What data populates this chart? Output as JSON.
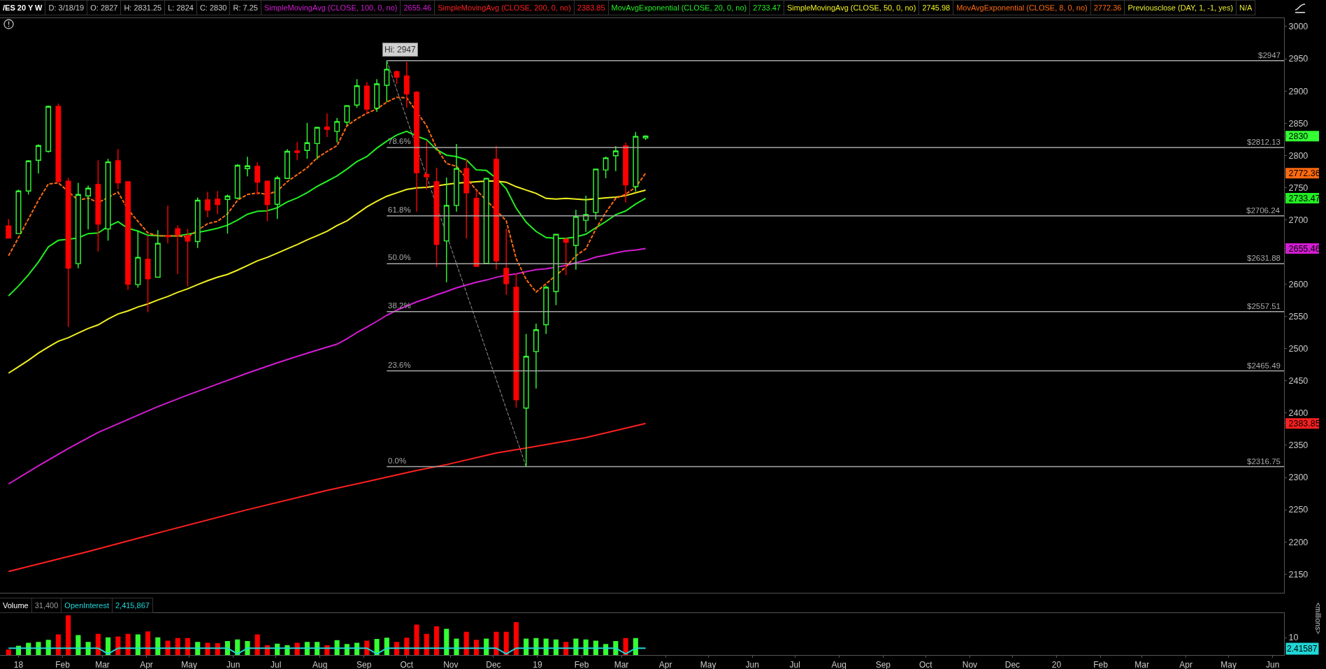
{
  "chart_data": [
    {
      "type": "candlestick",
      "title": "/ES 20 Y W",
      "x": [
        "2017-12-25",
        "2018-01-01",
        "2018-01-08",
        "2018-01-15",
        "2018-01-22",
        "2018-01-29",
        "2018-02-05",
        "2018-02-12",
        "2018-02-19",
        "2018-02-26",
        "2018-03-05",
        "2018-03-12",
        "2018-03-19",
        "2018-03-26",
        "2018-04-02",
        "2018-04-09",
        "2018-04-16",
        "2018-04-23",
        "2018-04-30",
        "2018-05-07",
        "2018-05-14",
        "2018-05-21",
        "2018-05-28",
        "2018-06-04",
        "2018-06-11",
        "2018-06-18",
        "2018-06-25",
        "2018-07-02",
        "2018-07-09",
        "2018-07-16",
        "2018-07-23",
        "2018-07-30",
        "2018-08-06",
        "2018-08-13",
        "2018-08-20",
        "2018-08-27",
        "2018-09-03",
        "2018-09-10",
        "2018-09-17",
        "2018-09-24",
        "2018-10-01",
        "2018-10-08",
        "2018-10-15",
        "2018-10-22",
        "2018-10-29",
        "2018-11-05",
        "2018-11-12",
        "2018-11-19",
        "2018-11-26",
        "2018-12-03",
        "2018-12-10",
        "2018-12-17",
        "2018-12-24",
        "2018-12-31",
        "2019-01-07",
        "2019-01-14",
        "2019-01-21",
        "2019-01-28",
        "2019-02-04",
        "2019-02-11",
        "2019-02-18",
        "2019-02-25",
        "2019-03-04",
        "2019-03-11",
        "2019-03-18"
      ],
      "ohlc": [
        [
          2690.5,
          2701.3,
          2671.7,
          2671.7
        ],
        [
          2678.6,
          2747.0,
          2678.6,
          2744.7
        ],
        [
          2744.7,
          2792.8,
          2739.3,
          2791.4
        ],
        [
          2792.4,
          2817.0,
          2771.8,
          2815.2
        ],
        [
          2806.2,
          2877.4,
          2804.4,
          2876.0
        ],
        [
          2876.0,
          2880.3,
          2759.2,
          2759.2
        ],
        [
          2759.9,
          2765.3,
          2534.0,
          2625.1
        ],
        [
          2632.0,
          2757.4,
          2624.7,
          2739.3
        ],
        [
          2737.1,
          2753.0,
          2685.1,
          2749.1
        ],
        [
          2754.9,
          2792.4,
          2650.7,
          2693.4
        ],
        [
          2685.8,
          2794.6,
          2667.7,
          2789.9
        ],
        [
          2791.7,
          2809.8,
          2747.6,
          2757.4
        ],
        [
          2759.2,
          2759.2,
          2591.1,
          2600.1
        ],
        [
          2599.4,
          2683.3,
          2594.7,
          2641.7
        ],
        [
          2638.8,
          2675.3,
          2556.7,
          2608.5
        ],
        [
          2611.0,
          2684.0,
          2611.0,
          2663.4
        ],
        [
          2675.3,
          2722.0,
          2663.4,
          2673.9
        ],
        [
          2686.2,
          2691.6,
          2615.7,
          2676.8
        ],
        [
          2675.3,
          2685.8,
          2596.5,
          2667.0
        ],
        [
          2666.3,
          2734.6,
          2656.2,
          2730.3
        ],
        [
          2731.0,
          2743.6,
          2703.9,
          2715.1
        ],
        [
          2732.1,
          2744.7,
          2708.6,
          2723.8
        ],
        [
          2731.7,
          2739.3,
          2678.6,
          2736.8
        ],
        [
          2733.5,
          2786.3,
          2731.7,
          2784.5
        ],
        [
          2779.4,
          2797.9,
          2767.5,
          2783.8
        ],
        [
          2783.1,
          2789.2,
          2738.6,
          2758.5
        ],
        [
          2759.9,
          2761.0,
          2697.7,
          2723.8
        ],
        [
          2724.1,
          2768.2,
          2701.3,
          2765.0
        ],
        [
          2764.2,
          2809.8,
          2764.2,
          2806.2
        ],
        [
          2806.9,
          2820.6,
          2792.4,
          2804.7
        ],
        [
          2807.6,
          2850.6,
          2794.6,
          2819.5
        ],
        [
          2818.4,
          2843.4,
          2793.5,
          2843.4
        ],
        [
          2844.1,
          2865.1,
          2828.6,
          2840.5
        ],
        [
          2837.3,
          2858.1,
          2820.0,
          2852.5
        ],
        [
          2851.6,
          2877.2,
          2846.8,
          2877.2
        ],
        [
          2878.1,
          2918.4,
          2873.7,
          2908.0
        ],
        [
          2907.6,
          2914.0,
          2865.5,
          2872.0
        ],
        [
          2873.3,
          2918.4,
          2867.7,
          2911.0
        ],
        [
          2908.9,
          2947.0,
          2882.8,
          2933.6
        ],
        [
          2930.1,
          2932.0,
          2911.0,
          2921.4
        ],
        [
          2923.2,
          2944.9,
          2874.2,
          2895.4
        ],
        [
          2898.0,
          2899.8,
          2712.8,
          2773.1
        ],
        [
          2770.5,
          2822.1,
          2747.1,
          2767.0
        ],
        [
          2759.2,
          2780.9,
          2626.9,
          2662.0
        ],
        [
          2667.2,
          2765.7,
          2603.0,
          2722.3
        ],
        [
          2722.3,
          2817.8,
          2712.8,
          2779.6
        ],
        [
          2779.6,
          2793.9,
          2671.1,
          2741.9
        ],
        [
          2733.2,
          2746.2,
          2626.9,
          2627.8
        ],
        [
          2632.5,
          2765.3,
          2632.5,
          2764.4
        ],
        [
          2793.9,
          2814.7,
          2622.6,
          2636.4
        ],
        [
          2624.7,
          2686.3,
          2583.5,
          2600.9
        ],
        [
          2595.2,
          2616.9,
          2408.7,
          2420.8
        ],
        [
          2407.8,
          2522.8,
          2316.75,
          2488.1
        ],
        [
          2495.5,
          2538.8,
          2438.2,
          2529.3
        ],
        [
          2537.1,
          2597.8,
          2522.8,
          2595.2
        ],
        [
          2588.7,
          2677.6,
          2567.5,
          2677.6
        ],
        [
          2669.8,
          2672.4,
          2613.9,
          2665.1
        ],
        [
          2660.3,
          2715.8,
          2622.6,
          2705.0
        ],
        [
          2699.3,
          2737.5,
          2681.1,
          2708.0
        ],
        [
          2711.5,
          2778.7,
          2700.6,
          2778.7
        ],
        [
          2777.4,
          2798.2,
          2764.4,
          2796.1
        ],
        [
          2799.5,
          2814.3,
          2775.7,
          2806.9
        ],
        [
          2814.7,
          2819.9,
          2726.7,
          2754.0
        ],
        [
          2751.4,
          2836.4,
          2744.0,
          2829.5
        ],
        [
          2827,
          2831.25,
          2824,
          2830
        ]
      ],
      "colors": [
        "#ff0000",
        "#33ff33",
        "#33ff33",
        "#33ff33",
        "#33ff33",
        "#ff0000",
        "#ff0000",
        "#33ff33",
        "#33ff33",
        "#ff0000",
        "#33ff33",
        "#ff0000",
        "#ff0000",
        "#33ff33",
        "#ff0000",
        "#33ff33",
        "#ff0000",
        "#ff0000",
        "#ff0000",
        "#33ff33",
        "#ff0000",
        "#ff0000",
        "#33ff33",
        "#33ff33",
        "#33ff33",
        "#ff0000",
        "#ff0000",
        "#33ff33",
        "#33ff33",
        "#ff0000",
        "#33ff33",
        "#33ff33",
        "#ff0000",
        "#33ff33",
        "#33ff33",
        "#33ff33",
        "#ff0000",
        "#33ff33",
        "#33ff33",
        "#ff0000",
        "#ff0000",
        "#ff0000",
        "#ff0000",
        "#ff0000",
        "#33ff33",
        "#33ff33",
        "#ff0000",
        "#ff0000",
        "#33ff33",
        "#ff0000",
        "#ff0000",
        "#ff0000",
        "#33ff33",
        "#33ff33",
        "#33ff33",
        "#33ff33",
        "#ff0000",
        "#33ff33",
        "#33ff33",
        "#33ff33",
        "#33ff33",
        "#33ff33",
        "#ff0000",
        "#33ff33",
        "#33ff33"
      ],
      "series": [
        {
          "name": "SimpleMovingAvg (CLOSE, 100, 0, no)",
          "type": "line",
          "color": "#d41cd4",
          "x": [
            "2017-12-25",
            "2018-01-15",
            "2018-02-05",
            "2018-02-26",
            "2018-03-19",
            "2018-04-09",
            "2018-04-30",
            "2018-05-21",
            "2018-06-11",
            "2018-07-02",
            "2018-07-23",
            "2018-08-13",
            "2018-08-20",
            "2018-08-27",
            "2018-09-03",
            "2018-09-10",
            "2018-09-17",
            "2018-09-24",
            "2018-10-01",
            "2018-10-08",
            "2018-10-15",
            "2018-10-22",
            "2018-10-29",
            "2018-11-05",
            "2018-11-12",
            "2018-11-19",
            "2018-11-26",
            "2018-12-03",
            "2018-12-10",
            "2018-12-17",
            "2018-12-24",
            "2018-12-31",
            "2019-01-07",
            "2019-01-14",
            "2019-01-21",
            "2019-01-28",
            "2019-02-04",
            "2019-02-11",
            "2019-02-18",
            "2019-02-25",
            "2019-03-04",
            "2019-03-11",
            "2019-03-18"
          ],
          "values": [
            2290,
            2318,
            2345,
            2370,
            2390,
            2410,
            2428,
            2445,
            2462,
            2478,
            2493,
            2507,
            2515.4,
            2525.0,
            2533.6,
            2542.3,
            2551.8,
            2559.7,
            2566.2,
            2572.7,
            2577.9,
            2583.5,
            2588.7,
            2594.4,
            2598.7,
            2603.0,
            2606.5,
            2610.8,
            2613.9,
            2616.0,
            2619.5,
            2622.6,
            2623.9,
            null,
            2629.1,
            2633.4,
            2636.9,
            2642.1,
            2645.1,
            2648.6,
            2651.6,
            2652.9,
            2655.46
          ]
        },
        {
          "name": "SimpleMovingAvg (CLOSE, 200, 0, no)",
          "type": "line",
          "color": "#ff2020",
          "x": [
            "2017-12-25",
            "2018-02-19",
            "2018-04-16",
            "2018-06-11",
            "2018-08-06",
            "2018-09-10",
            "2018-10-08",
            "2018-10-29",
            "2018-12-03",
            "2019-01-07",
            "2019-02-04",
            "2019-03-18"
          ],
          "values": [
            2154,
            2185,
            2218,
            2250,
            2280,
            2297,
            2311,
            2320,
            2338,
            2351,
            2362,
            2383.85
          ]
        },
        {
          "name": "MovAvgExponential (CLOSE, 20, 0, no)",
          "type": "line",
          "color": "#22ee22",
          "values": [
            2582.0,
            2597.2,
            2614.6,
            2634.5,
            2658.0,
            2668.1,
            null,
            2671.7,
            2678.6,
            2679.6,
            2689.8,
            2697.0,
            2686.9,
            2682.5,
            2676.0,
            2675.3,
            null,
            2674.9,
            null,
            2680.4,
            2683.3,
            2686.9,
            2691.6,
            2699.5,
            2708.6,
            2713.3,
            2714.0,
            2718.7,
            2727.7,
            2733.9,
            2742.2,
            2751.9,
            2759.9,
            2768.2,
            2778.7,
            2790.4,
            2798.2,
            2811.3,
            2822.1,
            2831.7,
            2837.3,
            2829.9,
            2824.3,
            2809.1,
            2800.4,
            2798.2,
            2793.0,
            2777.4,
            2776.6,
            2764.4,
            2748.3,
            2718.0,
            2696.3,
            2682.0,
            2672.4,
            2671.1,
            2671.1,
            2673.3,
            2677.6,
            2687.6,
            2697.2,
            2708.0,
            2713.7,
            2724.5,
            2733.47
          ]
        },
        {
          "name": "SimpleMovingAvg (CLOSE, 50, 0, no)",
          "type": "line",
          "color": "#f0f020",
          "values": [
            2462,
            2472,
            2482,
            2493,
            2502.5,
            2511.6,
            2517.0,
            2524.2,
            2531.4,
            2536.9,
            2545.9,
            2553.8,
            2558.6,
            2564.7,
            2569.4,
            2575.5,
            2581.0,
            2587.5,
            2592.9,
            2599.4,
            2605.5,
            2611.0,
            2615.3,
            2621.8,
            2629.0,
            2636.3,
            2641.7,
            2648.2,
            2655.1,
            2661.6,
            2668.8,
            2675.3,
            2682.2,
            2691.2,
            2698.5,
            2709.3,
            2720.2,
            2728.8,
            2736.6,
            2741.9,
            2747.1,
            2749.7,
            2750.5,
            null,
            2754.9,
            2757.0,
            null,
            2759.2,
            2760.1,
            2760.1,
            2758.3,
            2751.4,
            2746.2,
            2741.0,
            2733.2,
            2732.3,
            2733.2,
            2732.3,
            2731.0,
            null,
            2734.0,
            2735.3,
            2737.5,
            2741.9,
            2745.98
          ]
        },
        {
          "name": "MovAvgExponential (CLOSE, 8, 0, no)",
          "type": "line",
          "color": "#ff6a10",
          "line_style": "dashed",
          "values": [
            2644.2,
            2672.4,
            2701.3,
            2730.3,
            2755.6,
            2757.4,
            null,
            2730.3,
            2733.9,
            2726.6,
            null,
            2742.9,
            2715.8,
            2697.7,
            2679.6,
            2675.3,
            2674.9,
            2674.9,
            2673.1,
            null,
            2694.1,
            2697.7,
            2709.3,
            2730.3,
            2739.3,
            2741.8,
            2739.3,
            2744.7,
            2759.2,
            2770.0,
            2780.9,
            2796.1,
            2806.2,
            2815.2,
            2846.0,
            2856.8,
            2865.5,
            2872.0,
            2882.8,
            2890.2,
            2889.3,
            null,
            2846.0,
            2811.3,
            2787.4,
            2783.1,
            null,
            2746.2,
            null,
            null,
            2698.5,
            2639.9,
            2607.4,
            2587.8,
            null,
            null,
            2626.9,
            2644.2,
            2655.1,
            2685.5,
            2711.5,
            2733.2,
            2739.7,
            2750.5,
            2772.36
          ]
        },
        {
          "type": "line",
          "color": "#9a9a9a",
          "line_style": "dashed",
          "x": [
            "2018-09-17",
            "2018-12-24"
          ],
          "values": [
            2947,
            2316.75
          ]
        }
      ],
      "xlim": [
        "2017-12-19",
        "2020-06-09"
      ],
      "ylim": [
        2121,
        3013
      ],
      "yticks": [
        2150,
        2200,
        2250,
        2300,
        2350,
        2383.85,
        2400,
        2450,
        2500,
        2550,
        2600,
        {
          "value": 2650,
          "label": null
        },
        2655.46,
        2700,
        2733.47,
        2750,
        2772.36,
        2800,
        2830,
        2850,
        2900,
        2950,
        3000
      ],
      "tick_labels": "y",
      "ref_lines": [
        {
          "axis": "y",
          "value": 2947,
          "label": "$2947",
          "color": "#a8a8a8"
        },
        {
          "axis": "y",
          "value": 2812.13,
          "label": "$2812.13",
          "color": "#a8a8a8"
        },
        {
          "axis": "y",
          "value": 2706.24,
          "label": "$2706.24",
          "color": "#a8a8a8"
        },
        {
          "axis": "y",
          "value": 2631.88,
          "label": "$2631.88",
          "color": "#a8a8a8"
        },
        {
          "axis": "y",
          "value": 2557.51,
          "label": "$2557.51",
          "color": "#a8a8a8"
        },
        {
          "axis": "y",
          "value": 2465.49,
          "label": "$2465.49",
          "color": "#a8a8a8"
        },
        {
          "axis": "y",
          "value": 2316.75,
          "label": "$2316.75",
          "color": "#a8a8a8"
        }
      ],
      "annotations": [
        "D: 3/18/19",
        "O: 2827",
        "H: 2831.25",
        "L: 2824",
        "C: 2830",
        "R: 7.25",
        "2655.46",
        "2383.85",
        "2733.47",
        "2745.98",
        "2772.36",
        "Previousclose (DAY, 1, -1, yes)",
        "N/A",
        {
          "text": "Hi: 2947",
          "x": "2018-09-17",
          "y": 2947
        },
        {
          "text": "78.6%",
          "x": "2018-09-17",
          "y": 2812.13
        },
        {
          "text": "61.8%",
          "x": "2018-09-17",
          "y": 2706.24
        },
        {
          "text": "50.0%",
          "x": "2018-09-17",
          "y": 2631.88
        },
        {
          "text": "38.2%",
          "x": "2018-09-17",
          "y": 2557.51
        },
        {
          "text": "23.6%",
          "x": "2018-09-17",
          "y": 2465.49
        },
        {
          "text": "0.0%",
          "x": "2018-09-17",
          "y": 2316.75
        }
      ]
    },
    {
      "type": "bar",
      "x": [
        "2017-12-25",
        "2018-01-01",
        "2018-01-08",
        "2018-01-15",
        "2018-01-22",
        "2018-01-29",
        "2018-02-05",
        "2018-02-12",
        "2018-02-19",
        "2018-02-26",
        "2018-03-05",
        "2018-03-12",
        "2018-03-19",
        "2018-03-26",
        "2018-04-02",
        "2018-04-09",
        "2018-04-16",
        "2018-04-23",
        "2018-04-30",
        "2018-05-07",
        "2018-05-14",
        "2018-05-21",
        "2018-05-28",
        "2018-06-04",
        "2018-06-11",
        "2018-06-18",
        "2018-06-25",
        "2018-07-02",
        "2018-07-09",
        "2018-07-16",
        "2018-07-23",
        "2018-07-30",
        "2018-08-06",
        "2018-08-13",
        "2018-08-20",
        "2018-08-27",
        "2018-09-03",
        "2018-09-10",
        "2018-09-17",
        "2018-09-24",
        "2018-10-01",
        "2018-10-08",
        "2018-10-15",
        "2018-10-22",
        "2018-10-29",
        "2018-11-05",
        "2018-11-12",
        "2018-11-19",
        "2018-11-26",
        "2018-12-03",
        "2018-12-10",
        "2018-12-17",
        "2018-12-24",
        "2018-12-31",
        "2019-01-07",
        "2019-01-14",
        "2019-01-21",
        "2019-01-28",
        "2019-02-04",
        "2019-02-11",
        "2019-02-18",
        "2019-02-25",
        "2019-03-04",
        "2019-03-11",
        "2019-03-18"
      ],
      "series": [
        {
          "name": "Volume",
          "type": "bar",
          "colors": [
            "#ff0000",
            "#33ff33",
            "#33ff33",
            "#33ff33",
            "#33ff33",
            "#ff0000",
            "#ff0000",
            "#33ff33",
            "#33ff33",
            "#ff0000",
            "#33ff33",
            "#ff0000",
            "#ff0000",
            "#33ff33",
            "#ff0000",
            "#33ff33",
            "#ff0000",
            "#ff0000",
            "#ff0000",
            "#33ff33",
            "#ff0000",
            "#ff0000",
            "#33ff33",
            "#33ff33",
            "#33ff33",
            "#ff0000",
            "#ff0000",
            "#33ff33",
            "#33ff33",
            "#ff0000",
            "#33ff33",
            "#33ff33",
            "#ff0000",
            "#33ff33",
            "#33ff33",
            "#33ff33",
            "#ff0000",
            "#33ff33",
            "#33ff33",
            "#ff0000",
            "#ff0000",
            "#ff0000",
            "#ff0000",
            "#ff0000",
            "#33ff33",
            "#33ff33",
            "#ff0000",
            "#ff0000",
            "#33ff33",
            "#ff0000",
            "#ff0000",
            "#ff0000",
            "#33ff33",
            "#33ff33",
            "#33ff33",
            "#33ff33",
            "#ff0000",
            "#33ff33",
            "#33ff33",
            "#33ff33",
            "#33ff33",
            "#33ff33",
            "#ff0000",
            "#33ff33",
            "#33ff33"
          ],
          "values": [
            3.1,
            5.3,
            7.0,
            7.5,
            8.7,
            11.8,
            22.7,
            11.4,
            7.5,
            12.1,
            10.1,
            10.6,
            12.1,
            11.8,
            13.5,
            10.1,
            8.2,
            9.7,
            9.7,
            7.5,
            7.0,
            6.8,
            8.0,
            8.9,
            8.0,
            11.8,
            5.6,
            6.5,
            5.6,
            7.0,
            7.5,
            7.5,
            5.6,
            8.5,
            6.3,
            7.0,
            8.2,
            9.2,
            9.9,
            7.5,
            9.9,
            17.4,
            12.1,
            16.4,
            15.0,
            9.4,
            13.3,
            8.7,
            9.4,
            13.3,
            13.3,
            18.8,
            9.4,
            9.7,
            9.4,
            8.9,
            7.5,
            9.4,
            8.9,
            8.2,
            6.3,
            8.0,
            9.7,
            9.7,
            null
          ]
        },
        {
          "name": "OpenInterest",
          "type": "line",
          "color": "#1fd6d6",
          "values": [
            3.9,
            3.9,
            3.9,
            3.9,
            3.9,
            3.9,
            3.9,
            3.9,
            3.9,
            3.9,
            0.7,
            3.9,
            3.9,
            3.9,
            3.9,
            3.9,
            3.9,
            3.9,
            3.9,
            3.9,
            3.9,
            3.9,
            3.9,
            0.7,
            3.9,
            3.9,
            3.9,
            3.9,
            3.9,
            3.9,
            3.9,
            3.9,
            3.9,
            3.9,
            3.9,
            3.9,
            3.9,
            0.7,
            3.9,
            3.9,
            3.9,
            3.9,
            3.9,
            3.9,
            3.9,
            3.9,
            3.9,
            3.9,
            3.9,
            3.9,
            0.7,
            3.9,
            3.9,
            3.9,
            3.9,
            3.9,
            3.9,
            3.9,
            3.9,
            3.9,
            3.9,
            3.9,
            0.7,
            3.9,
            3.9
          ]
        }
      ],
      "xlim": [
        "2017-12-19",
        "2020-06-09"
      ],
      "ylim": [
        0,
        24
      ],
      "xticks": [
        {
          "value": "2018-01-01",
          "label": "18"
        },
        {
          "value": "2018-02-01",
          "label": "Feb"
        },
        {
          "value": "2018-03-01",
          "label": "Mar"
        },
        {
          "value": "2018-04-01",
          "label": "Apr"
        },
        {
          "value": "2018-05-01",
          "label": "May"
        },
        {
          "value": "2018-06-01",
          "label": "Jun"
        },
        {
          "value": "2018-07-01",
          "label": "Jul"
        },
        {
          "value": "2018-08-01",
          "label": "Aug"
        },
        {
          "value": "2018-09-01",
          "label": "Sep"
        },
        {
          "value": "2018-10-01",
          "label": "Oct"
        },
        {
          "value": "2018-11-01",
          "label": "Nov"
        },
        {
          "value": "2018-12-01",
          "label": "Dec"
        },
        {
          "value": "2019-01-01",
          "label": "19"
        },
        {
          "value": "2019-02-01",
          "label": "Feb"
        },
        {
          "value": "2019-03-01",
          "label": "Mar"
        },
        {
          "value": "2019-04-01",
          "label": "Apr"
        },
        {
          "value": "2019-05-01",
          "label": "May"
        },
        {
          "value": "2019-06-01",
          "label": "Jun"
        },
        {
          "value": "2019-07-01",
          "label": "Jul"
        },
        {
          "value": "2019-08-01",
          "label": "Aug"
        },
        {
          "value": "2019-09-01",
          "label": "Sep"
        },
        {
          "value": "2019-10-01",
          "label": "Oct"
        },
        {
          "value": "2019-11-01",
          "label": "Nov"
        },
        {
          "value": "2019-12-01",
          "label": "Dec"
        },
        {
          "value": "2020-01-01",
          "label": "20"
        },
        {
          "value": "2020-02-01",
          "label": "Feb"
        },
        {
          "value": "2020-03-01",
          "label": "Mar"
        },
        {
          "value": "2020-04-01",
          "label": "Apr"
        },
        {
          "value": "2020-05-01",
          "label": "May"
        },
        {
          "value": "2020-06-01",
          "label": "Jun"
        }
      ],
      "yticks": [
        10
      ],
      "ylabel": "<millions>",
      "annotations": [
        "31,400",
        "2,415,867",
        "2.41587"
      ]
    }
  ]
}
